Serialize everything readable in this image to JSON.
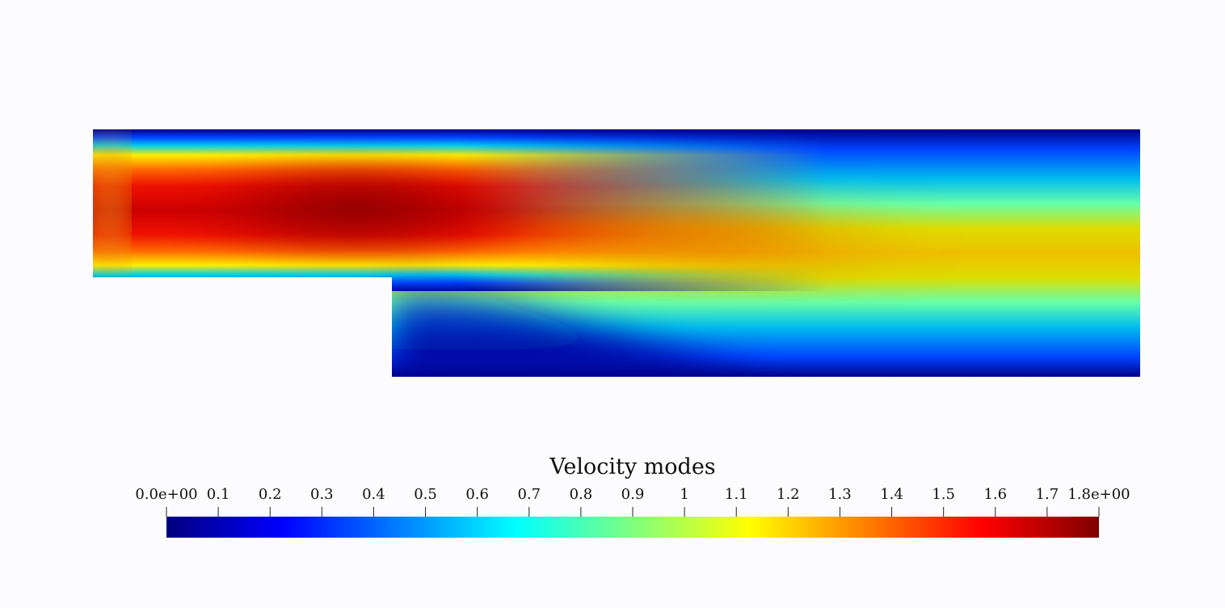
{
  "figure": {
    "type": "contour-field",
    "description_visible": "backward-facing step channel, velocity magnitude"
  },
  "colorbar": {
    "title": "Velocity modes",
    "min": 0.0,
    "max": 1.8,
    "tick_values": [
      0,
      0.1,
      0.2,
      0.3,
      0.4,
      0.5,
      0.6,
      0.7,
      0.8,
      0.9,
      1,
      1.1,
      1.2,
      1.3,
      1.4,
      1.5,
      1.6,
      1.7,
      1.8
    ],
    "tick_labels": [
      "0.0e+00",
      "0.1",
      "0.2",
      "0.3",
      "0.4",
      "0.5",
      "0.6",
      "0.7",
      "0.8",
      "0.9",
      "1",
      "1.1",
      "1.2",
      "1.3",
      "1.4",
      "1.5",
      "1.6",
      "1.7",
      "1.8e+00"
    ],
    "colormap": [
      "#00007f",
      "#0000ff",
      "#00ffff",
      "#7fff7f",
      "#ffff00",
      "#ff0000",
      "#7f0000"
    ]
  }
}
